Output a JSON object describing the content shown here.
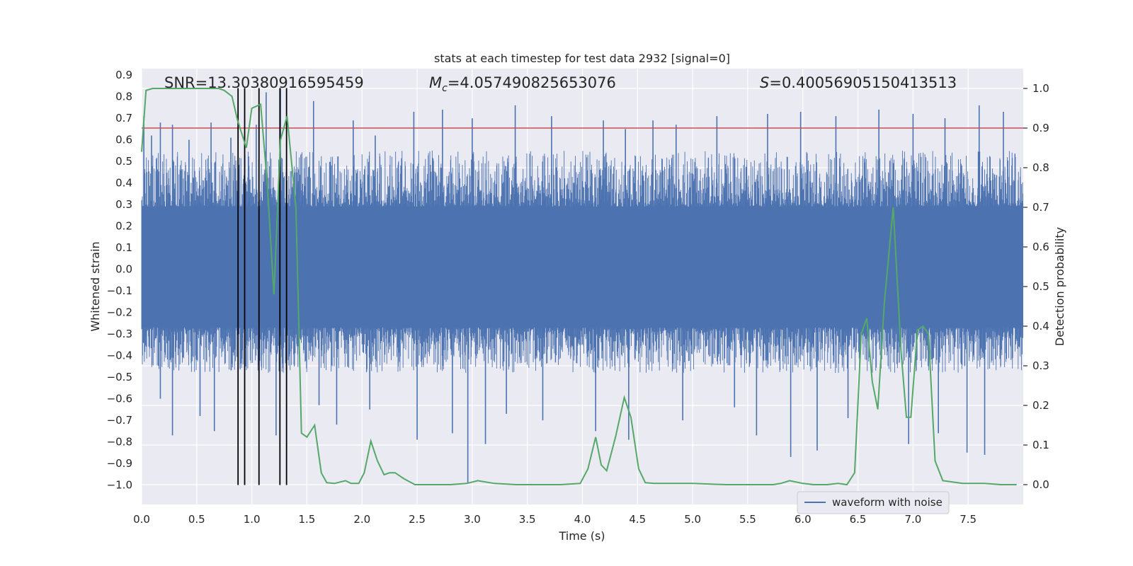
{
  "chart_data": {
    "type": "line",
    "title": "stats at each timestep for test data 2932 [signal=0]",
    "xlabel": "Time (s)",
    "ylabel": "Whitened strain",
    "y2label": "Detection probability",
    "xlim": [
      0.0,
      8.0
    ],
    "ylim": [
      -1.09,
      0.93
    ],
    "y2lim": [
      -0.05,
      1.05
    ],
    "xticks": [
      "0.0",
      "0.5",
      "1.0",
      "1.5",
      "2.0",
      "2.5",
      "3.0",
      "3.5",
      "4.0",
      "4.5",
      "5.0",
      "5.5",
      "6.0",
      "6.5",
      "7.0",
      "7.5"
    ],
    "xtick_values": [
      0.0,
      0.5,
      1.0,
      1.5,
      2.0,
      2.5,
      3.0,
      3.5,
      4.0,
      4.5,
      5.0,
      5.5,
      6.0,
      6.5,
      7.0,
      7.5
    ],
    "yticks": [
      "0.9",
      "0.8",
      "0.7",
      "0.6",
      "0.5",
      "0.4",
      "0.3",
      "0.2",
      "0.1",
      "0.0",
      "−0.1",
      "−0.2",
      "−0.3",
      "−0.4",
      "−0.5",
      "−0.6",
      "−0.7",
      "−0.8",
      "−0.9",
      "−1.0"
    ],
    "ytick_values": [
      0.9,
      0.8,
      0.7,
      0.6,
      0.5,
      0.4,
      0.3,
      0.2,
      0.1,
      0.0,
      -0.1,
      -0.2,
      -0.3,
      -0.4,
      -0.5,
      -0.6,
      -0.7,
      -0.8,
      -0.9,
      -1.0
    ],
    "y2ticks": [
      "1.0",
      "0.9",
      "0.8",
      "0.7",
      "0.6",
      "0.5",
      "0.4",
      "0.3",
      "0.2",
      "0.1",
      "0.0"
    ],
    "y2tick_values": [
      1.0,
      0.9,
      0.8,
      0.7,
      0.6,
      0.5,
      0.4,
      0.3,
      0.2,
      0.1,
      0.0
    ],
    "annotations": {
      "snr": "SNR=13.30380916595459",
      "mc_symbol": "M",
      "mc_sub": "c",
      "mc_value": "=4.057490825653076",
      "s_symbol": "S",
      "s_value": "=0.40056905150413513"
    },
    "legend": {
      "label": "waveform with noise",
      "position": "lower-right"
    },
    "threshold": 0.9,
    "vertical_lines_x": [
      0.875,
      0.935,
      1.065,
      1.255,
      1.315
    ],
    "waveform": {
      "name": "waveform with noise",
      "color": "#4c72b0",
      "core_range": [
        -0.27,
        0.29
      ],
      "envelope_range": [
        -0.48,
        0.55
      ],
      "peak_spikes": [
        {
          "x": 0.02,
          "y": 0.71
        },
        {
          "x": 0.09,
          "y": 0.62
        },
        {
          "x": 0.17,
          "y": 0.68
        },
        {
          "x": 0.28,
          "y": 0.67
        },
        {
          "x": 0.43,
          "y": 0.6
        },
        {
          "x": 0.63,
          "y": 0.68
        },
        {
          "x": 0.81,
          "y": 0.61
        },
        {
          "x": 1.04,
          "y": 0.67
        },
        {
          "x": 1.13,
          "y": 0.82
        },
        {
          "x": 1.26,
          "y": 0.84
        },
        {
          "x": 1.56,
          "y": 0.78
        },
        {
          "x": 1.92,
          "y": 0.69
        },
        {
          "x": 2.12,
          "y": 0.62
        },
        {
          "x": 2.47,
          "y": 0.73
        },
        {
          "x": 2.73,
          "y": 0.74
        },
        {
          "x": 3.0,
          "y": 0.7
        },
        {
          "x": 3.39,
          "y": 0.76
        },
        {
          "x": 3.72,
          "y": 0.71
        },
        {
          "x": 4.19,
          "y": 0.69
        },
        {
          "x": 4.39,
          "y": 0.65
        },
        {
          "x": 4.64,
          "y": 0.69
        },
        {
          "x": 4.85,
          "y": 0.67
        },
        {
          "x": 5.22,
          "y": 0.71
        },
        {
          "x": 5.68,
          "y": 0.72
        },
        {
          "x": 5.98,
          "y": 0.73
        },
        {
          "x": 6.3,
          "y": 0.71
        },
        {
          "x": 6.69,
          "y": 0.74
        },
        {
          "x": 7.0,
          "y": 0.72
        },
        {
          "x": 7.29,
          "y": 0.7
        },
        {
          "x": 7.6,
          "y": 0.76
        },
        {
          "x": 7.82,
          "y": 0.73
        }
      ],
      "trough_spikes": [
        {
          "x": 0.17,
          "y": -0.6
        },
        {
          "x": 0.28,
          "y": -0.77
        },
        {
          "x": 0.53,
          "y": -0.68
        },
        {
          "x": 0.66,
          "y": -0.75
        },
        {
          "x": 1.22,
          "y": -0.77
        },
        {
          "x": 1.61,
          "y": -0.63
        },
        {
          "x": 1.77,
          "y": -0.72
        },
        {
          "x": 2.07,
          "y": -0.65
        },
        {
          "x": 2.5,
          "y": -0.79
        },
        {
          "x": 2.82,
          "y": -0.76
        },
        {
          "x": 2.96,
          "y": -0.99
        },
        {
          "x": 3.12,
          "y": -0.81
        },
        {
          "x": 3.31,
          "y": -0.67
        },
        {
          "x": 3.64,
          "y": -0.7
        },
        {
          "x": 4.12,
          "y": -0.75
        },
        {
          "x": 4.42,
          "y": -0.79
        },
        {
          "x": 4.91,
          "y": -0.7
        },
        {
          "x": 5.38,
          "y": -0.64
        },
        {
          "x": 5.58,
          "y": -0.77
        },
        {
          "x": 5.89,
          "y": -0.87
        },
        {
          "x": 6.13,
          "y": -0.84
        },
        {
          "x": 6.41,
          "y": -0.69
        },
        {
          "x": 6.96,
          "y": -0.81
        },
        {
          "x": 7.23,
          "y": -0.76
        },
        {
          "x": 7.49,
          "y": -0.85
        },
        {
          "x": 7.65,
          "y": -0.86
        }
      ]
    },
    "detection_probability": {
      "color": "#55a868",
      "x": [
        0.0,
        0.04,
        0.1,
        0.2,
        0.4,
        0.6,
        0.7,
        0.75,
        0.82,
        0.87,
        0.95,
        1.0,
        1.08,
        1.14,
        1.2,
        1.26,
        1.32,
        1.4,
        1.45,
        1.5,
        1.57,
        1.63,
        1.68,
        1.75,
        1.85,
        1.9,
        1.97,
        2.02,
        2.08,
        2.14,
        2.2,
        2.25,
        2.3,
        2.38,
        2.48,
        2.6,
        2.8,
        2.95,
        3.05,
        3.2,
        3.4,
        3.6,
        3.8,
        3.98,
        4.05,
        4.12,
        4.17,
        4.22,
        4.3,
        4.38,
        4.44,
        4.51,
        4.57,
        4.65,
        4.8,
        5.0,
        5.3,
        5.6,
        5.73,
        5.8,
        5.88,
        6.0,
        6.1,
        6.22,
        6.32,
        6.4,
        6.47,
        6.53,
        6.58,
        6.63,
        6.68,
        6.74,
        6.82,
        6.89,
        6.94,
        6.98,
        7.04,
        7.09,
        7.14,
        7.2,
        7.27,
        7.45,
        7.6,
        7.65,
        7.8,
        7.94
      ],
      "y": [
        0.84,
        0.995,
        1.0,
        1.0,
        1.0,
        1.0,
        1.0,
        0.995,
        0.98,
        0.92,
        0.85,
        0.95,
        0.96,
        0.76,
        0.48,
        0.87,
        0.93,
        0.7,
        0.13,
        0.12,
        0.15,
        0.03,
        0.005,
        0.003,
        0.01,
        0.003,
        0.003,
        0.03,
        0.11,
        0.06,
        0.025,
        0.03,
        0.03,
        0.015,
        0.0,
        0.0,
        0.0,
        0.003,
        0.01,
        0.003,
        0.0,
        0.0,
        0.0,
        0.003,
        0.04,
        0.12,
        0.05,
        0.035,
        0.12,
        0.22,
        0.17,
        0.04,
        0.005,
        0.003,
        0.003,
        0.003,
        0.0,
        0.0,
        0.0,
        0.003,
        0.01,
        0.003,
        0.0,
        0.0,
        0.003,
        0.0,
        0.03,
        0.38,
        0.42,
        0.26,
        0.19,
        0.46,
        0.7,
        0.34,
        0.17,
        0.17,
        0.39,
        0.4,
        0.38,
        0.06,
        0.01,
        0.003,
        0.003,
        0.003,
        0.0,
        0.0
      ]
    }
  }
}
